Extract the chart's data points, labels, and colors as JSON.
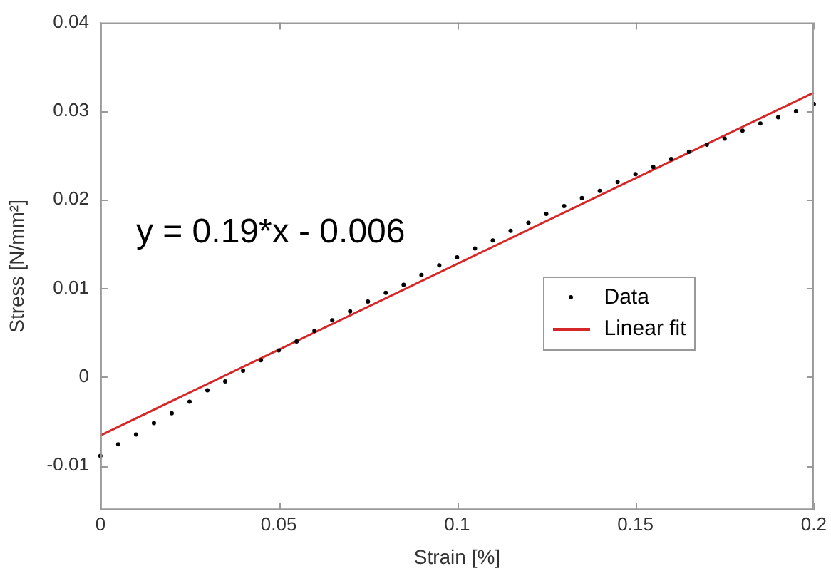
{
  "chart_data": {
    "type": "scatter",
    "xlabel": "Strain [%]",
    "ylabel": "Stress [N/mm²]",
    "annotations": [
      "y = 0.19*x - 0.006"
    ],
    "x": [
      0,
      0.005,
      0.01,
      0.015,
      0.02,
      0.025,
      0.03,
      0.035,
      0.04,
      0.045,
      0.05,
      0.055,
      0.06,
      0.065,
      0.07,
      0.075,
      0.08,
      0.085,
      0.09,
      0.095,
      0.1,
      0.105,
      0.11,
      0.115,
      0.12,
      0.125,
      0.13,
      0.135,
      0.14,
      0.145,
      0.15,
      0.155,
      0.16,
      0.165,
      0.17,
      0.175,
      0.18,
      0.185,
      0.19,
      0.195,
      0.2
    ],
    "series": [
      {
        "name": "Data",
        "color": "#000000",
        "marker": "circle",
        "values": [
          -0.0089,
          -0.0076,
          -0.0065,
          -0.0052,
          -0.0041,
          -0.0028,
          -0.0015,
          -0.0005,
          0.0007,
          0.0019,
          0.003,
          0.004,
          0.0052,
          0.0064,
          0.0074,
          0.0085,
          0.0095,
          0.0104,
          0.0115,
          0.0126,
          0.0135,
          0.0145,
          0.0154,
          0.0165,
          0.0174,
          0.0184,
          0.0193,
          0.0202,
          0.021,
          0.022,
          0.0229,
          0.0237,
          0.0246,
          0.0254,
          0.0262,
          0.0269,
          0.0278,
          0.0286,
          0.0293,
          0.03,
          0.0308
        ]
      },
      {
        "name": "Linear fit",
        "type": "line",
        "color": "#d62728",
        "marker": "none",
        "x": [
          0,
          0.2
        ],
        "values": [
          -0.0066,
          0.0321
        ]
      }
    ],
    "xlim": [
      0,
      0.2
    ],
    "xticks": [
      0,
      0.05,
      0.1,
      0.15,
      0.2
    ],
    "ylim": [
      -0.015,
      0.04
    ],
    "yticks": [
      -0.01,
      0,
      0.01,
      0.02,
      0.03,
      0.04
    ],
    "grid": false,
    "legend": "right"
  }
}
